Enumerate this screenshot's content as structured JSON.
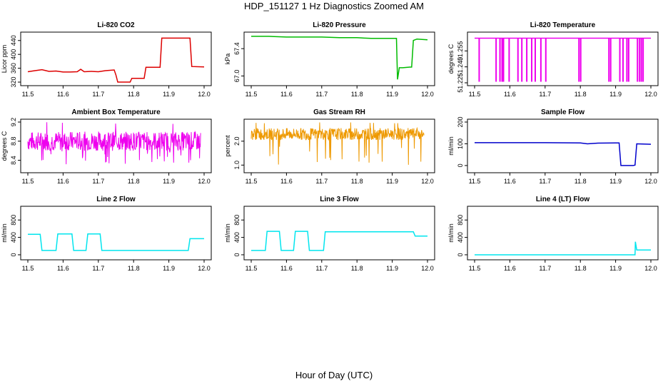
{
  "title": "HDP_151127  1 Hz Diagnostics Zoomed AM",
  "xlabel": "Hour of Day (UTC)",
  "chart_data": [
    {
      "type": "line",
      "title": "Li-820 CO2",
      "ylabel": "Licor ppm",
      "color": "#dd0000",
      "x_ticks": [
        "11.5",
        "11.6",
        "11.7",
        "11.8",
        "11.9",
        "12.0"
      ],
      "y_ticks": [
        "320",
        "360",
        "400",
        "440"
      ],
      "xlim": [
        11.5,
        12.0
      ],
      "ylim": [
        318,
        456
      ],
      "series": [
        {
          "x": [
            11.5,
            11.52,
            11.54,
            11.56,
            11.58,
            11.6,
            11.62,
            11.64,
            11.65,
            11.66,
            11.68,
            11.7,
            11.72,
            11.745,
            11.75,
            11.755,
            11.79,
            11.795,
            11.83,
            11.835,
            11.875,
            11.88,
            11.96,
            11.965,
            12.0
          ],
          "y": [
            350,
            353,
            356,
            351,
            352,
            349,
            349,
            350,
            357,
            350,
            351,
            350,
            353,
            355,
            340,
            320,
            320,
            331,
            331,
            363,
            363,
            447,
            447,
            365,
            364
          ]
        }
      ]
    },
    {
      "type": "line",
      "title": "Li-820 Pressure",
      "ylabel": "kPa",
      "color": "#00bb00",
      "x_ticks": [
        "11.5",
        "11.6",
        "11.7",
        "11.8",
        "11.9",
        "12.0"
      ],
      "y_ticks": [
        "67.0",
        "67.4"
      ],
      "xlim": [
        11.5,
        12.0
      ],
      "ylim": [
        66.9,
        67.6
      ],
      "series": [
        {
          "x": [
            11.5,
            11.55,
            11.6,
            11.65,
            11.7,
            11.75,
            11.8,
            11.84,
            11.9,
            11.912,
            11.915,
            11.92,
            11.925,
            11.93,
            11.95,
            11.955,
            11.96,
            11.97,
            12.0
          ],
          "y": [
            67.58,
            67.58,
            67.57,
            67.57,
            67.57,
            67.56,
            67.56,
            67.55,
            67.55,
            67.55,
            66.95,
            67.12,
            67.12,
            67.12,
            67.13,
            67.13,
            67.52,
            67.54,
            67.53
          ]
        }
      ]
    },
    {
      "type": "line",
      "title": "Li-820 Temperature",
      "ylabel": "degrees C",
      "color": "#ee00ee",
      "x_ticks": [
        "11.5",
        "11.6",
        "11.7",
        "11.8",
        "11.9",
        "12.0"
      ],
      "y_ticks": [
        "51.225",
        "51.240",
        "51.255"
      ],
      "xlim": [
        11.5,
        12.0
      ],
      "ylim": [
        51.225,
        51.27
      ],
      "series": [
        {
          "x": [
            11.5,
            11.52,
            11.56,
            11.57,
            11.575,
            11.58,
            11.59,
            11.62,
            11.63,
            11.645,
            11.66,
            11.67,
            11.685,
            11.7,
            11.795,
            11.8,
            11.88,
            11.885,
            11.91,
            11.92,
            11.93,
            11.935,
            11.96,
            11.965,
            11.97,
            11.975,
            12.0
          ],
          "y": [
            51.267,
            51.267,
            51.267,
            51.267,
            51.267,
            51.267,
            51.267,
            51.267,
            51.267,
            51.267,
            51.267,
            51.267,
            51.267,
            51.267,
            51.267,
            51.267,
            51.267,
            51.267,
            51.267,
            51.267,
            51.267,
            51.267,
            51.267,
            51.267,
            51.267,
            51.267,
            51.267
          ]
        }
      ],
      "dropouts_x": [
        11.513,
        11.561,
        11.572,
        11.578,
        11.582,
        11.598,
        11.623,
        11.634,
        11.648,
        11.662,
        11.672,
        11.688,
        11.702,
        11.796,
        11.801,
        11.881,
        11.886,
        11.912,
        11.921,
        11.932,
        11.937,
        11.962,
        11.968,
        11.973,
        11.978
      ],
      "dropout_low": 51.226
    },
    {
      "type": "line",
      "title": "Ambient Box Temperature",
      "ylabel": "degrees C",
      "color": "#ee00ee",
      "x_ticks": [
        "11.5",
        "11.6",
        "11.7",
        "11.8",
        "11.9",
        "12.0"
      ],
      "y_ticks": [
        "8.4",
        "8.8",
        "9.2"
      ],
      "xlim": [
        11.5,
        12.0
      ],
      "ylim": [
        8.2,
        9.2
      ],
      "series": [
        {
          "x": [
            11.5,
            11.99
          ],
          "y": [
            8.8,
            8.8
          ]
        }
      ],
      "noise": {
        "center": 8.8,
        "amplitude": 0.2,
        "spikes_low": 8.3,
        "spikes_high": 9.2
      }
    },
    {
      "type": "line",
      "title": "Gas Stream RH",
      "ylabel": "percent",
      "color": "#ee9900",
      "x_ticks": [
        "11.5",
        "11.6",
        "11.7",
        "11.8",
        "11.9",
        "12.0"
      ],
      "y_ticks": [
        "1.0",
        "2.0"
      ],
      "xlim": [
        11.5,
        12.0
      ],
      "ylim": [
        0.8,
        2.8
      ],
      "series": [
        {
          "x": [
            11.5,
            11.99
          ],
          "y": [
            2.3,
            2.3
          ]
        }
      ],
      "noise": {
        "center": 2.3,
        "amplitude": 0.25,
        "spikes_low": 1.0,
        "spikes_high": 2.8
      }
    },
    {
      "type": "line",
      "title": "Sample Flow",
      "ylabel": "ml/min",
      "color": "#0000cc",
      "x_ticks": [
        "11.5",
        "11.6",
        "11.7",
        "11.8",
        "11.9",
        "12.0"
      ],
      "y_ticks": [
        "0",
        "100",
        "200"
      ],
      "xlim": [
        11.5,
        12.0
      ],
      "ylim": [
        -20,
        200
      ],
      "series": [
        {
          "x": [
            11.5,
            11.6,
            11.7,
            11.8,
            11.82,
            11.85,
            11.9,
            11.91,
            11.915,
            11.95,
            11.955,
            11.96,
            12.0
          ],
          "y": [
            105,
            105,
            105,
            104,
            100,
            103,
            104,
            104,
            0,
            0,
            2,
            100,
            98
          ]
        }
      ]
    },
    {
      "type": "line",
      "title": "Line 2 Flow",
      "ylabel": "ml/min",
      "color": "#00e5ee",
      "x_ticks": [
        "11.5",
        "11.6",
        "11.7",
        "11.8",
        "11.9",
        "12.0"
      ],
      "y_ticks": [
        "0",
        "400",
        "800"
      ],
      "xlim": [
        11.5,
        12.0
      ],
      "ylim": [
        -50,
        1050
      ],
      "series": [
        {
          "x": [
            11.5,
            11.535,
            11.54,
            11.58,
            11.585,
            11.625,
            11.63,
            11.665,
            11.67,
            11.705,
            11.71,
            11.955,
            11.96,
            12.0
          ],
          "y": [
            470,
            470,
            100,
            100,
            480,
            480,
            100,
            100,
            480,
            480,
            100,
            100,
            370,
            370
          ]
        }
      ]
    },
    {
      "type": "line",
      "title": "Line 3 Flow",
      "ylabel": "ml/min",
      "color": "#00e5ee",
      "x_ticks": [
        "11.5",
        "11.6",
        "11.7",
        "11.8",
        "11.9",
        "12.0"
      ],
      "y_ticks": [
        "0",
        "400",
        "800"
      ],
      "xlim": [
        11.5,
        12.0
      ],
      "ylim": [
        -50,
        1050
      ],
      "series": [
        {
          "x": [
            11.5,
            11.54,
            11.545,
            11.58,
            11.585,
            11.62,
            11.625,
            11.66,
            11.665,
            11.705,
            11.71,
            11.96,
            11.965,
            12.0
          ],
          "y": [
            100,
            100,
            540,
            540,
            100,
            100,
            540,
            540,
            100,
            100,
            530,
            530,
            430,
            430
          ]
        }
      ]
    },
    {
      "type": "line",
      "title": "Line 4 (LT) Flow",
      "ylabel": "ml/min",
      "color": "#00e5ee",
      "x_ticks": [
        "11.5",
        "11.6",
        "11.7",
        "11.8",
        "11.9",
        "12.0"
      ],
      "y_ticks": [
        "0",
        "400",
        "800"
      ],
      "xlim": [
        11.5,
        12.0
      ],
      "ylim": [
        -50,
        1050
      ],
      "series": [
        {
          "x": [
            11.5,
            11.6,
            11.7,
            11.8,
            11.9,
            11.955,
            11.956,
            11.96,
            12.0
          ],
          "y": [
            0,
            0,
            0,
            0,
            0,
            0,
            300,
            110,
            110
          ]
        }
      ]
    }
  ]
}
